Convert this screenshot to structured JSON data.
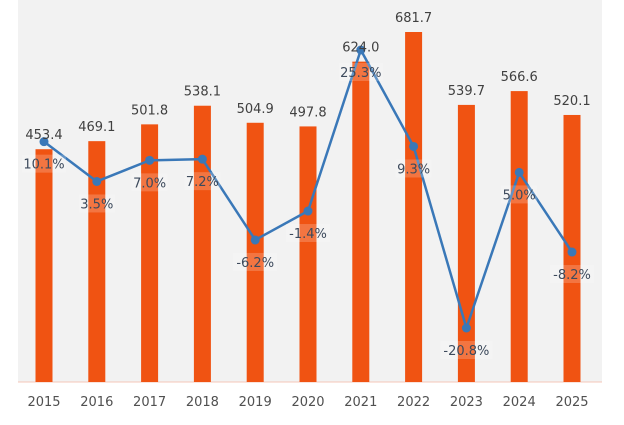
{
  "chart_data": {
    "type": "bar+line",
    "categories": [
      "2015",
      "2016",
      "2017",
      "2018",
      "2019",
      "2020",
      "2021",
      "2022",
      "2023",
      "2024",
      "2025"
    ],
    "series": [
      {
        "type": "bar",
        "values": [
          453.4,
          469.1,
          501.8,
          538.1,
          504.9,
          497.8,
          624.0,
          681.7,
          539.7,
          566.6,
          520.1
        ],
        "color": "#f05312"
      },
      {
        "type": "line",
        "values": [
          10.1,
          3.5,
          7.0,
          7.2,
          -6.2,
          -1.4,
          25.3,
          9.3,
          -20.8,
          5.0,
          -8.2
        ],
        "unit": "%",
        "color": "#3a78b8"
      }
    ],
    "bar_labels": [
      "453.4",
      "469.1",
      "501.8",
      "538.1",
      "504.9",
      "497.8",
      "624.0",
      "681.7",
      "539.7",
      "566.6",
      "520.1"
    ],
    "line_labels": [
      "10.1%",
      "3.5%",
      "7.0%",
      "7.2%",
      "-6.2%",
      "-1.4%",
      "25.3%",
      "9.3%",
      "-20.8%",
      "5.0%",
      "-8.2%"
    ],
    "bar_ylim": [
      0,
      681.7
    ],
    "line_ylim": [
      -20.8,
      25.3
    ],
    "grid": false,
    "legend": "none",
    "background": "#f2f2f2"
  }
}
